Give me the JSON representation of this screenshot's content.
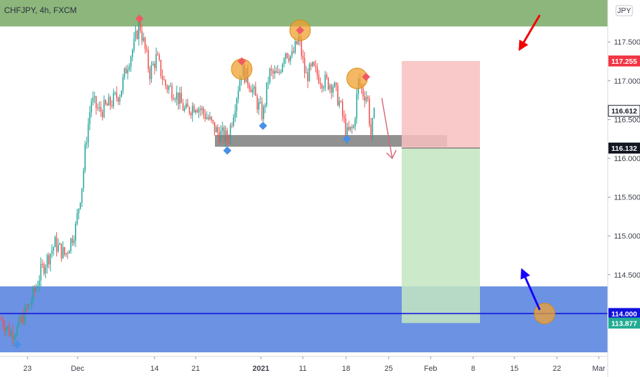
{
  "header": {
    "symbol_label": "CHFJPY, 4h, FXCM",
    "currency_badge": "JPY"
  },
  "chart_data": {
    "type": "candlestick",
    "symbol": "CHFJPY",
    "timeframe": "4h",
    "source": "FXCM",
    "currency": "JPY",
    "y_axis": {
      "range": [
        113.4,
        118.2
      ],
      "ticks": [
        114.5,
        115.0,
        115.5,
        116.0,
        116.5,
        117.0,
        117.5
      ],
      "tick_labels": [
        "114.500",
        "115.000",
        "115.500",
        "116.000",
        "116.500",
        "117.000",
        "117.500"
      ]
    },
    "x_axis": {
      "tick_labels": [
        "23",
        "Dec",
        "14",
        "21",
        "2021",
        "11",
        "18",
        "25",
        "Feb",
        "8",
        "15",
        "22",
        "Mar"
      ]
    },
    "price_tags": [
      {
        "value": "117.255",
        "kind": "stop",
        "color": "#f23645"
      },
      {
        "value": "116.612",
        "kind": "last",
        "color": "#ffffff"
      },
      {
        "value": "116.132",
        "kind": "entry",
        "color": "#131722"
      },
      {
        "value": "114.000",
        "kind": "level",
        "color": "#1111dd"
      },
      {
        "value": "113.877",
        "kind": "target",
        "color": "#22ab94"
      }
    ],
    "price_path": [
      [
        0,
        113.95
      ],
      [
        15,
        113.75
      ],
      [
        25,
        113.8
      ],
      [
        45,
        114.15
      ],
      [
        60,
        114.55
      ],
      [
        80,
        114.9
      ],
      [
        95,
        114.75
      ],
      [
        110,
        115.1
      ],
      [
        120,
        115.7
      ],
      [
        125,
        116.2
      ],
      [
        133,
        116.75
      ],
      [
        145,
        116.6
      ],
      [
        160,
        116.7
      ],
      [
        175,
        116.85
      ],
      [
        185,
        117.2
      ],
      [
        195,
        117.45
      ],
      [
        203,
        117.75
      ],
      [
        210,
        117.45
      ],
      [
        218,
        117.1
      ],
      [
        228,
        117.3
      ],
      [
        240,
        116.95
      ],
      [
        255,
        116.85
      ],
      [
        270,
        116.6
      ],
      [
        285,
        116.7
      ],
      [
        300,
        116.55
      ],
      [
        315,
        116.35
      ],
      [
        332,
        116.25
      ],
      [
        342,
        116.7
      ],
      [
        352,
        117.15
      ],
      [
        365,
        116.95
      ],
      [
        375,
        116.7
      ],
      [
        383,
        116.55
      ],
      [
        392,
        117.1
      ],
      [
        405,
        117.05
      ],
      [
        415,
        117.4
      ],
      [
        425,
        117.3
      ],
      [
        435,
        117.55
      ],
      [
        445,
        117.05
      ],
      [
        455,
        117.15
      ],
      [
        470,
        117.0
      ],
      [
        485,
        116.95
      ],
      [
        495,
        116.7
      ],
      [
        505,
        116.3
      ],
      [
        515,
        116.4
      ],
      [
        522,
        117.0
      ],
      [
        528,
        116.85
      ],
      [
        535,
        116.8
      ],
      [
        540,
        116.3
      ],
      [
        546,
        116.6
      ]
    ],
    "zones": [
      {
        "name": "resistance",
        "from": 117.7,
        "to": 118.2,
        "color": "#7fae6e"
      },
      {
        "name": "support",
        "from": 113.5,
        "to": 114.35,
        "color": "#5b86e0"
      },
      {
        "name": "neckline",
        "from": 116.15,
        "to": 116.3,
        "color": "#7e7e7e"
      }
    ],
    "horizontal_line": {
      "value": 114.0,
      "color": "#1111dd"
    },
    "position": {
      "entry": 116.132,
      "stop": 117.255,
      "target": 113.877,
      "risk_color": "#f8bfbf",
      "reward_color": "#c3e6c1"
    },
    "markers": [
      {
        "type": "high",
        "x": 203,
        "price": 117.8
      },
      {
        "type": "high",
        "x": 352,
        "price": 117.25
      },
      {
        "type": "high",
        "x": 437,
        "price": 117.65
      },
      {
        "type": "high",
        "x": 533,
        "price": 117.05
      },
      {
        "type": "low",
        "x": 25,
        "price": 113.6
      },
      {
        "type": "low",
        "x": 331,
        "price": 116.1
      },
      {
        "type": "low",
        "x": 383,
        "price": 116.42
      },
      {
        "type": "low",
        "x": 505,
        "price": 116.25
      }
    ],
    "circles": [
      {
        "x": 352,
        "price": 117.15
      },
      {
        "x": 437,
        "price": 117.65
      },
      {
        "x": 520,
        "price": 117.03
      },
      {
        "x": 788,
        "price": 118.2
      },
      {
        "x": 793,
        "price": 114.0
      }
    ],
    "arrows": [
      {
        "name": "bearish-arrow",
        "color": "#f20000"
      },
      {
        "name": "bullish-arrow",
        "color": "#1500ff"
      },
      {
        "name": "projection-arrow",
        "color": "#d46a7a"
      }
    ]
  }
}
